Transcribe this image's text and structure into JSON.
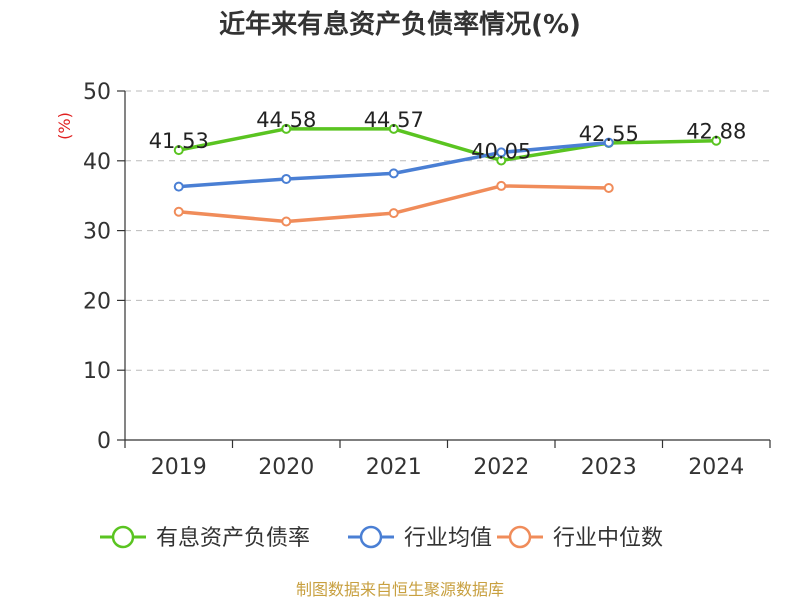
{
  "chart_data": {
    "type": "line",
    "title": "近年来有息资产负债率情况(%)",
    "ylabel": "(%)",
    "categories": [
      "2019",
      "2020",
      "2021",
      "2022",
      "2023",
      "2024"
    ],
    "ylim": [
      0,
      50
    ],
    "yticks": [
      "0",
      "10",
      "20",
      "30",
      "40",
      "50"
    ],
    "grid": true,
    "legend_position": "bottom",
    "series": [
      {
        "name": "有息资产负债率",
        "color": "#5ac421",
        "values": [
          41.53,
          44.58,
          44.57,
          40.05,
          42.55,
          42.88
        ],
        "labels": [
          "41.53",
          "44.58",
          "44.57",
          "40.05",
          "42.55",
          "42.88"
        ]
      },
      {
        "name": "行业均值",
        "color": "#4a7fd4",
        "values": [
          36.3,
          37.4,
          38.2,
          41.2,
          42.6,
          null
        ]
      },
      {
        "name": "行业中位数",
        "color": "#f08c5a",
        "values": [
          32.7,
          31.3,
          32.5,
          36.4,
          36.1,
          null
        ]
      }
    ]
  },
  "source": "制图数据来自恒生聚源数据库"
}
